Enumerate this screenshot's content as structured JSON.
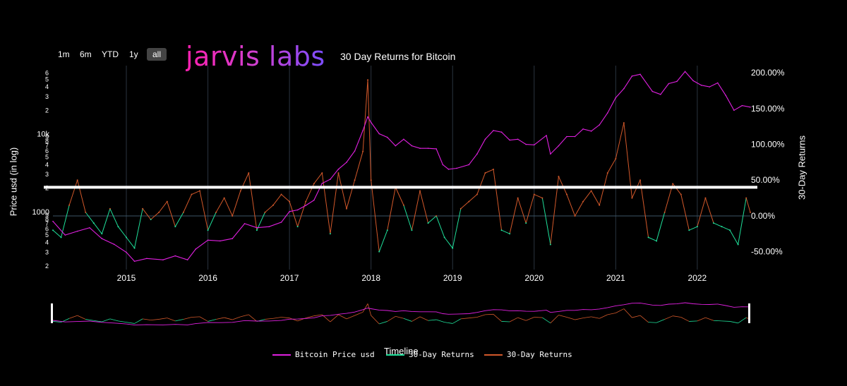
{
  "range_buttons": [
    "1m",
    "6m",
    "YTD",
    "1y",
    "all"
  ],
  "range_active": "all",
  "logo": {
    "text": "jarvis labs"
  },
  "colors": {
    "price": "#e020e0",
    "positive_returns": "#d2582a",
    "negative_returns": "#1fe09a",
    "background": "#000000",
    "grid": "#2a3440",
    "marker_line": "#ffffff"
  },
  "chart_data": {
    "type": "line",
    "title": "30 Day Returns for Bitcoin",
    "xlabel": "Timeline",
    "ylabel_left": "Price usd (in log)",
    "ylabel_right": "30-Day Returns",
    "x_ticks": [
      "2015",
      "2016",
      "2017",
      "2018",
      "2019",
      "2020",
      "2021",
      "2022"
    ],
    "x_range": [
      2014.1,
      2022.65
    ],
    "y_left": {
      "scale": "log",
      "range": [
        180,
        75000
      ],
      "major_ticks": [
        "1000",
        "10k"
      ],
      "minor_ticks": [
        {
          "v": 200,
          "label": "2"
        },
        {
          "v": 300,
          "label": "3"
        },
        {
          "v": 400,
          "label": "4"
        },
        {
          "v": 500,
          "label": "5"
        },
        {
          "v": 600,
          "label": "6"
        },
        {
          "v": 700,
          "label": "7"
        },
        {
          "v": 800,
          "label": "8"
        },
        {
          "v": 900,
          "label": "9"
        },
        {
          "v": 2000,
          "label": "2"
        },
        {
          "v": 3000,
          "label": "3"
        },
        {
          "v": 4000,
          "label": "4"
        },
        {
          "v": 5000,
          "label": "5"
        },
        {
          "v": 6000,
          "label": "6"
        },
        {
          "v": 7000,
          "label": "7"
        },
        {
          "v": 8000,
          "label": "8"
        },
        {
          "v": 9000,
          "label": "9"
        },
        {
          "v": 20000,
          "label": "2"
        },
        {
          "v": 30000,
          "label": "3"
        },
        {
          "v": 40000,
          "label": "4"
        },
        {
          "v": 50000,
          "label": "5"
        },
        {
          "v": 60000,
          "label": "6"
        }
      ]
    },
    "y_right": {
      "range": [
        -0.75,
        2.1
      ],
      "ticks": [
        {
          "v": 2.0,
          "label": "200.00%"
        },
        {
          "v": 1.5,
          "label": "150.00%"
        },
        {
          "v": 1.0,
          "label": "100.00%"
        },
        {
          "v": 0.5,
          "label": "50.00%"
        },
        {
          "v": 0.0,
          "label": "0.00%"
        },
        {
          "v": -0.5,
          "label": "-50.00%"
        }
      ]
    },
    "reference_line": {
      "type": "horizontal",
      "value": 0.4
    },
    "series": [
      {
        "name": "Bitcoin Price usd",
        "axis": "left",
        "x": [
          2014.1,
          2014.25,
          2014.4,
          2014.55,
          2014.7,
          2014.85,
          2015.0,
          2015.1,
          2015.25,
          2015.45,
          2015.6,
          2015.75,
          2015.85,
          2016.0,
          2016.15,
          2016.3,
          2016.45,
          2016.6,
          2016.75,
          2016.9,
          2017.0,
          2017.1,
          2017.2,
          2017.3,
          2017.4,
          2017.5,
          2017.6,
          2017.7,
          2017.8,
          2017.9,
          2017.96,
          2018.0,
          2018.1,
          2018.2,
          2018.3,
          2018.4,
          2018.5,
          2018.6,
          2018.7,
          2018.8,
          2018.88,
          2018.95,
          2019.05,
          2019.2,
          2019.3,
          2019.4,
          2019.5,
          2019.6,
          2019.7,
          2019.8,
          2019.9,
          2020.0,
          2020.15,
          2020.2,
          2020.3,
          2020.4,
          2020.5,
          2020.6,
          2020.7,
          2020.8,
          2020.9,
          2021.0,
          2021.1,
          2021.2,
          2021.3,
          2021.45,
          2021.55,
          2021.65,
          2021.75,
          2021.85,
          2021.95,
          2022.05,
          2022.15,
          2022.25,
          2022.35,
          2022.45,
          2022.55,
          2022.65
        ],
        "y": [
          750,
          500,
          560,
          620,
          450,
          380,
          300,
          230,
          250,
          240,
          270,
          240,
          330,
          430,
          420,
          450,
          700,
          620,
          640,
          730,
          1000,
          1050,
          1200,
          1400,
          2300,
          2600,
          3500,
          4300,
          6000,
          11000,
          16500,
          14000,
          10000,
          9000,
          7000,
          8500,
          7000,
          6500,
          6500,
          6400,
          4000,
          3500,
          3600,
          4000,
          5500,
          8500,
          11000,
          10500,
          8300,
          8500,
          7300,
          7200,
          9500,
          5500,
          7000,
          9200,
          9200,
          11500,
          10800,
          13000,
          18500,
          29000,
          38000,
          55000,
          58000,
          35000,
          32000,
          44000,
          47000,
          63000,
          48000,
          42000,
          40000,
          45000,
          31000,
          20000,
          23000,
          22000
        ]
      },
      {
        "name": "30-Day Returns",
        "axis": "right",
        "color_note": "green below 0",
        "x": [
          2014.1,
          2014.2,
          2014.3,
          2014.4,
          2014.5,
          2014.6,
          2014.7,
          2014.8,
          2014.9,
          2015.0,
          2015.1,
          2015.2,
          2015.3,
          2015.4,
          2015.5,
          2015.6,
          2015.7,
          2015.8,
          2015.9,
          2016.0,
          2016.1,
          2016.2,
          2016.3,
          2016.4,
          2016.5,
          2016.6,
          2016.7,
          2016.8,
          2016.9,
          2017.0,
          2017.1,
          2017.2,
          2017.3,
          2017.4,
          2017.5,
          2017.6,
          2017.7,
          2017.8,
          2017.9,
          2017.96,
          2018.0,
          2018.1,
          2018.2,
          2018.3,
          2018.4,
          2018.5,
          2018.6,
          2018.7,
          2018.8,
          2018.9,
          2019.0,
          2019.1,
          2019.2,
          2019.3,
          2019.4,
          2019.5,
          2019.6,
          2019.7,
          2019.8,
          2019.9,
          2020.0,
          2020.1,
          2020.2,
          2020.3,
          2020.4,
          2020.5,
          2020.6,
          2020.7,
          2020.8,
          2020.9,
          2021.0,
          2021.1,
          2021.2,
          2021.3,
          2021.4,
          2021.5,
          2021.6,
          2021.7,
          2021.8,
          2021.9,
          2022.0,
          2022.1,
          2022.2,
          2022.3,
          2022.4,
          2022.5,
          2022.6,
          2022.65
        ],
        "y": [
          -0.2,
          -0.3,
          0.15,
          0.5,
          0.05,
          -0.1,
          -0.25,
          0.1,
          -0.15,
          -0.3,
          -0.45,
          0.1,
          -0.05,
          0.05,
          0.2,
          -0.15,
          0.05,
          0.3,
          0.35,
          -0.2,
          0.05,
          0.25,
          0.0,
          0.35,
          0.6,
          -0.2,
          0.05,
          0.15,
          0.3,
          0.2,
          -0.15,
          0.2,
          0.45,
          0.6,
          -0.25,
          0.6,
          0.1,
          0.5,
          0.9,
          1.9,
          0.5,
          -0.5,
          -0.2,
          0.4,
          0.15,
          -0.2,
          0.35,
          -0.1,
          0.0,
          -0.3,
          -0.45,
          0.1,
          0.2,
          0.3,
          0.6,
          0.65,
          -0.2,
          -0.25,
          0.25,
          -0.1,
          0.3,
          0.25,
          -0.4,
          0.55,
          0.3,
          0.0,
          0.2,
          0.35,
          0.15,
          0.6,
          0.8,
          1.3,
          0.25,
          0.5,
          -0.3,
          -0.35,
          0.05,
          0.45,
          0.3,
          -0.2,
          -0.15,
          0.25,
          -0.1,
          -0.15,
          -0.2,
          -0.4,
          0.25,
          0.05
        ]
      }
    ],
    "legend": [
      "Bitcoin Price usd",
      "30-Day Returns",
      "30-Day Returns"
    ],
    "legend_position": "bottom-center"
  }
}
